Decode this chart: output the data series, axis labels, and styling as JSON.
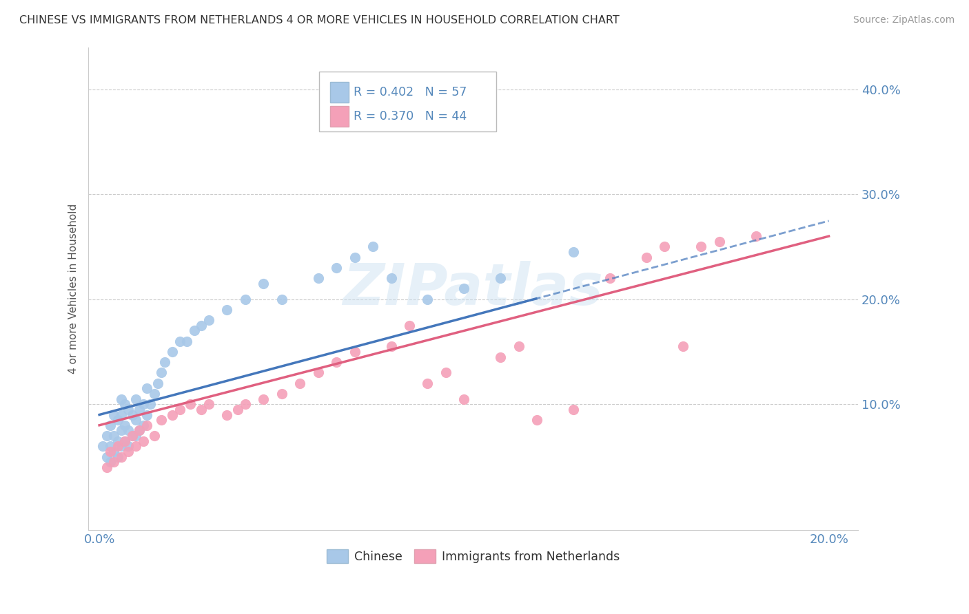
{
  "title": "CHINESE VS IMMIGRANTS FROM NETHERLANDS 4 OR MORE VEHICLES IN HOUSEHOLD CORRELATION CHART",
  "source": "Source: ZipAtlas.com",
  "ylabel": "4 or more Vehicles in Household",
  "xlim": [
    -0.003,
    0.208
  ],
  "ylim": [
    -0.02,
    0.44
  ],
  "yticks": [
    0.1,
    0.2,
    0.3,
    0.4
  ],
  "ytick_labels": [
    "10.0%",
    "20.0%",
    "30.0%",
    "40.0%"
  ],
  "xticks": [
    0.0,
    0.05,
    0.1,
    0.15,
    0.2
  ],
  "xtick_labels": [
    "0.0%",
    "",
    "",
    "",
    "20.0%"
  ],
  "blue_color": "#a8c8e8",
  "pink_color": "#f4a0b8",
  "blue_line_color": "#4477bb",
  "pink_line_color": "#e06080",
  "axis_color": "#5588bb",
  "grid_color": "#cccccc",
  "watermark": "ZIPatlas",
  "blue_scatter_x": [
    0.001,
    0.002,
    0.002,
    0.003,
    0.003,
    0.003,
    0.004,
    0.004,
    0.004,
    0.005,
    0.005,
    0.005,
    0.006,
    0.006,
    0.006,
    0.006,
    0.007,
    0.007,
    0.007,
    0.008,
    0.008,
    0.008,
    0.009,
    0.009,
    0.01,
    0.01,
    0.01,
    0.011,
    0.011,
    0.012,
    0.012,
    0.013,
    0.013,
    0.014,
    0.015,
    0.016,
    0.017,
    0.018,
    0.02,
    0.022,
    0.024,
    0.026,
    0.028,
    0.03,
    0.035,
    0.04,
    0.045,
    0.05,
    0.06,
    0.065,
    0.07,
    0.075,
    0.08,
    0.09,
    0.1,
    0.11,
    0.13
  ],
  "blue_scatter_y": [
    0.06,
    0.05,
    0.07,
    0.045,
    0.06,
    0.08,
    0.055,
    0.07,
    0.09,
    0.05,
    0.065,
    0.085,
    0.06,
    0.075,
    0.09,
    0.105,
    0.065,
    0.08,
    0.1,
    0.06,
    0.075,
    0.095,
    0.07,
    0.09,
    0.07,
    0.085,
    0.105,
    0.075,
    0.095,
    0.08,
    0.1,
    0.09,
    0.115,
    0.1,
    0.11,
    0.12,
    0.13,
    0.14,
    0.15,
    0.16,
    0.16,
    0.17,
    0.175,
    0.18,
    0.19,
    0.2,
    0.215,
    0.2,
    0.22,
    0.23,
    0.24,
    0.25,
    0.22,
    0.2,
    0.21,
    0.22,
    0.245
  ],
  "pink_scatter_x": [
    0.002,
    0.003,
    0.004,
    0.005,
    0.006,
    0.007,
    0.008,
    0.009,
    0.01,
    0.011,
    0.012,
    0.013,
    0.015,
    0.017,
    0.02,
    0.022,
    0.025,
    0.028,
    0.03,
    0.035,
    0.038,
    0.04,
    0.045,
    0.05,
    0.055,
    0.06,
    0.065,
    0.07,
    0.08,
    0.085,
    0.09,
    0.095,
    0.1,
    0.11,
    0.115,
    0.12,
    0.13,
    0.14,
    0.15,
    0.155,
    0.16,
    0.165,
    0.17,
    0.18
  ],
  "pink_scatter_y": [
    0.04,
    0.055,
    0.045,
    0.06,
    0.05,
    0.065,
    0.055,
    0.07,
    0.06,
    0.075,
    0.065,
    0.08,
    0.07,
    0.085,
    0.09,
    0.095,
    0.1,
    0.095,
    0.1,
    0.09,
    0.095,
    0.1,
    0.105,
    0.11,
    0.12,
    0.13,
    0.14,
    0.15,
    0.155,
    0.175,
    0.12,
    0.13,
    0.105,
    0.145,
    0.155,
    0.085,
    0.095,
    0.22,
    0.24,
    0.25,
    0.155,
    0.25,
    0.255,
    0.26
  ]
}
